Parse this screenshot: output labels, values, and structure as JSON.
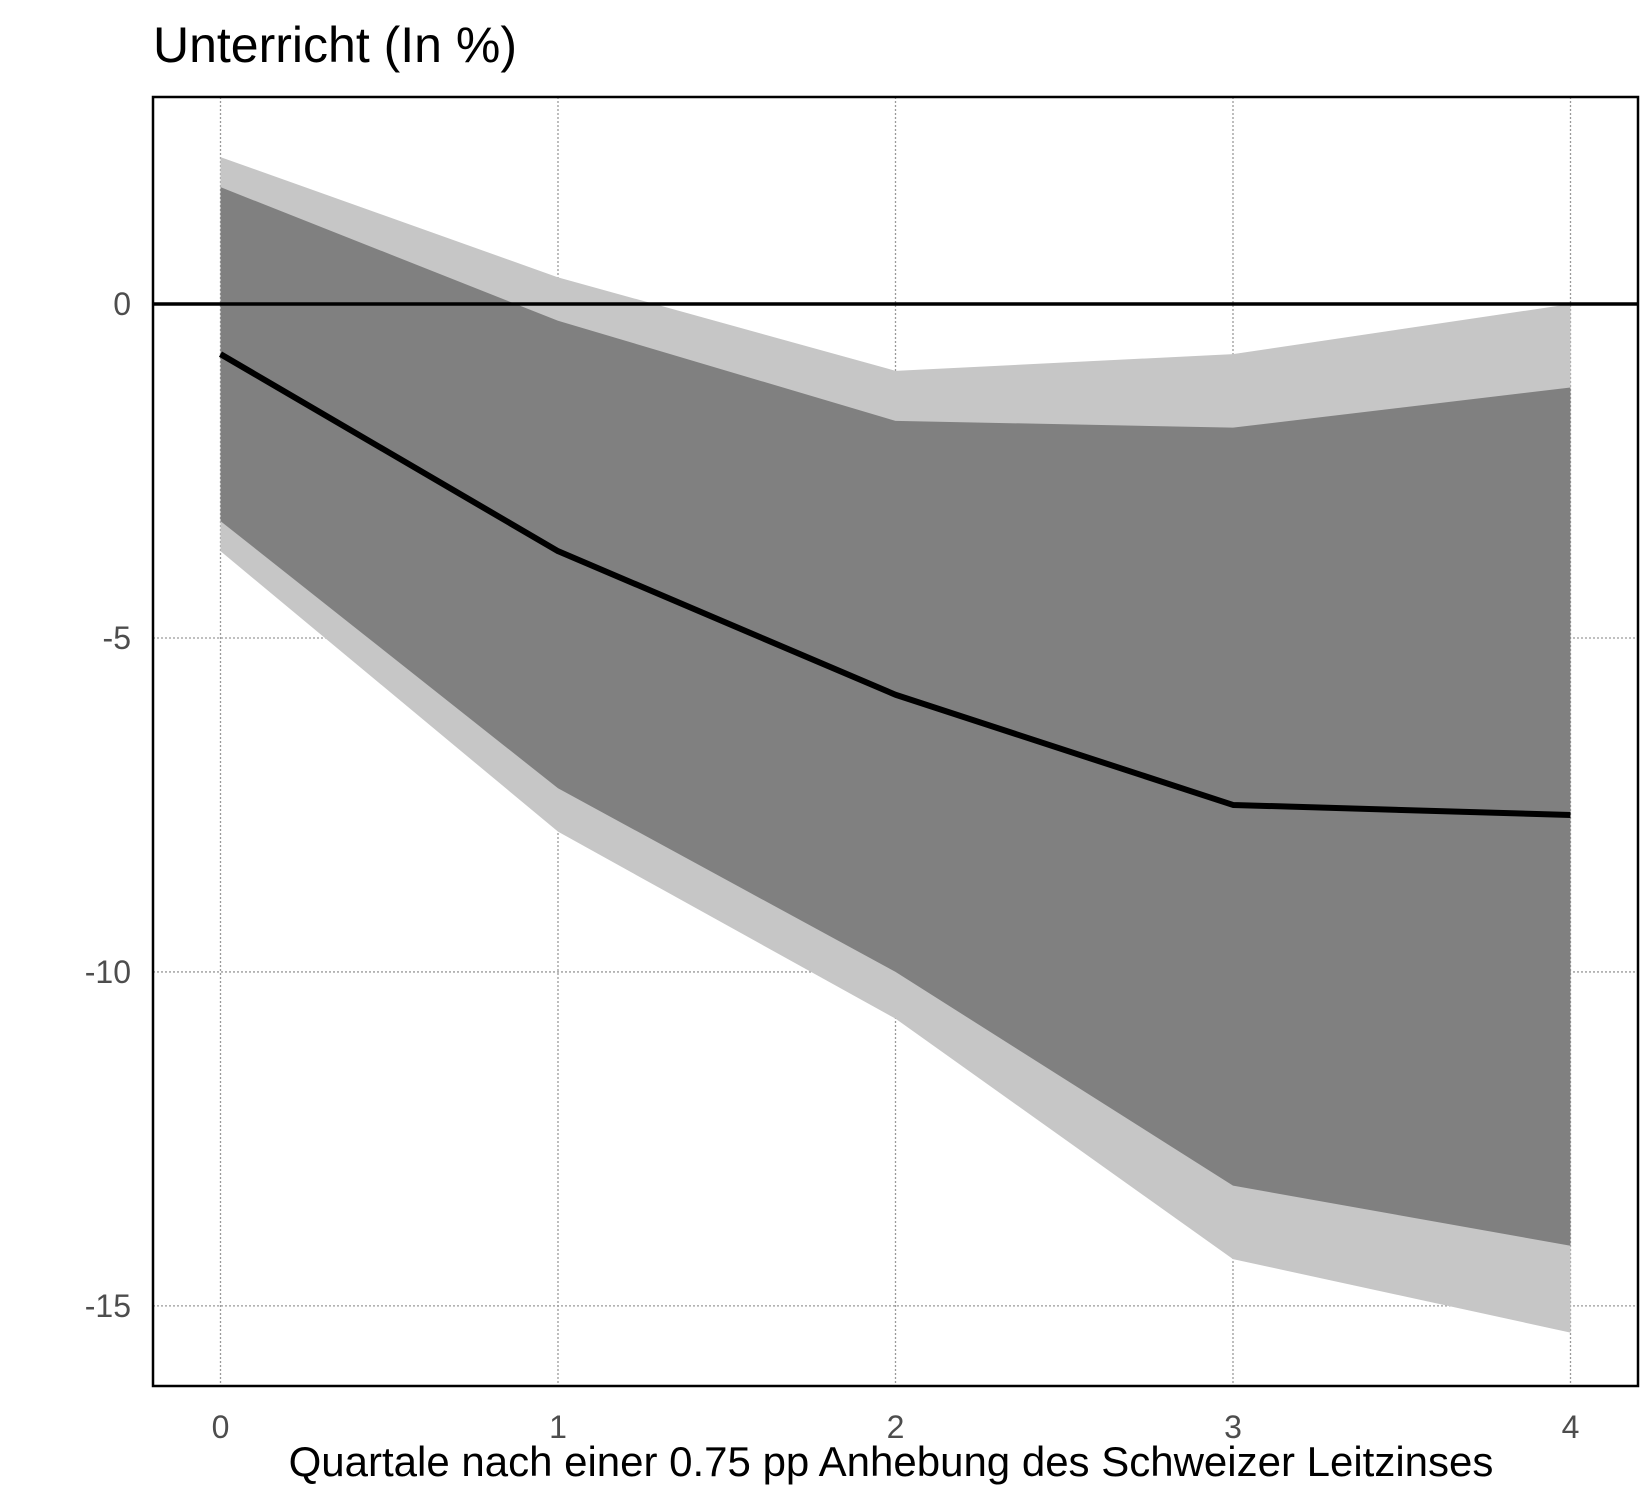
{
  "chart_data": {
    "type": "area",
    "title": "Unterricht (In %)",
    "xlabel": "Quartale nach einer 0.75 pp Anhebung des Schweizer Leitzinses",
    "ylabel": "",
    "x": [
      0,
      1,
      2,
      3,
      4
    ],
    "xlim": [
      -0.2,
      4.2
    ],
    "ylim": [
      -16.2,
      3.1
    ],
    "xticks": [
      0,
      1,
      2,
      3,
      4
    ],
    "yticks": [
      0,
      -5,
      -10,
      -15
    ],
    "xtick_labels": [
      "0",
      "1",
      "2",
      "3",
      "4"
    ],
    "ytick_labels": [
      "0",
      "-5",
      "-10",
      "-15"
    ],
    "grid": true,
    "zero_line": true,
    "series": [
      {
        "role": "outer-band",
        "color": "#c6c6c6",
        "upper": [
          2.2,
          0.4,
          -1.0,
          -0.75,
          0.0
        ],
        "lower": [
          -3.7,
          -7.9,
          -10.7,
          -14.3,
          -15.4
        ]
      },
      {
        "role": "inner-band",
        "color": "#808080",
        "upper": [
          1.75,
          -0.25,
          -1.75,
          -1.85,
          -1.25
        ],
        "lower": [
          -3.25,
          -7.25,
          -10.0,
          -13.2,
          -14.1
        ]
      },
      {
        "role": "median-line",
        "color": "#000000",
        "values": [
          -0.75,
          -3.7,
          -5.85,
          -7.5,
          -7.65
        ]
      }
    ]
  }
}
